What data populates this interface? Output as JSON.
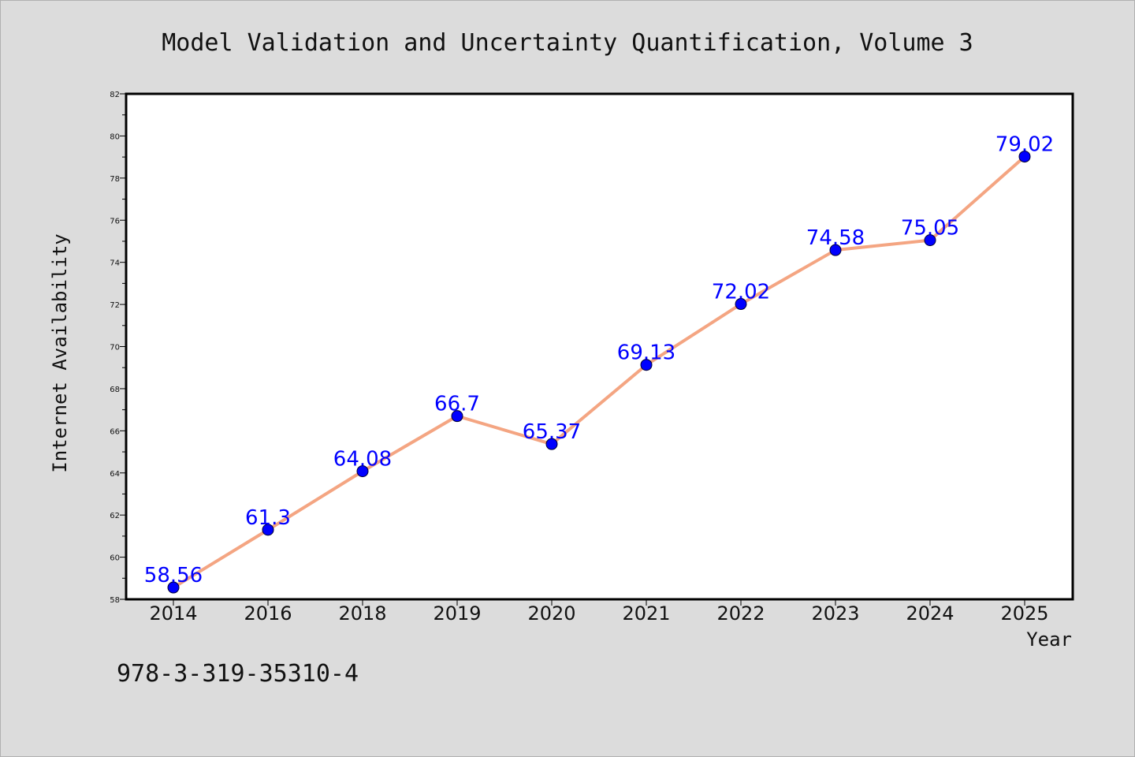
{
  "chart_data": {
    "type": "line",
    "title": "Model Validation and Uncertainty Quantification, Volume 3",
    "xlabel": "Year",
    "ylabel": "Internet Availability",
    "categories": [
      "2014",
      "2016",
      "2018",
      "2019",
      "2020",
      "2021",
      "2022",
      "2023",
      "2024",
      "2025"
    ],
    "series": [
      {
        "values": [
          58.56,
          61.3,
          64.08,
          66.7,
          65.37,
          69.13,
          72.02,
          74.58,
          75.05,
          79.02
        ],
        "labels": [
          "58.56",
          "61.3",
          "64.08",
          "66.7",
          "65.37",
          "69.13",
          "72.02",
          "74.58",
          "75.05",
          "79.02"
        ]
      }
    ],
    "ylim": [
      58,
      82
    ],
    "ytick_labels": [
      "58",
      "60",
      "62",
      "64",
      "66",
      "68",
      "70",
      "72",
      "74",
      "76",
      "78",
      "80",
      "82"
    ],
    "grid": false,
    "colors": {
      "line": "#f4a582",
      "marker": "#0000ff",
      "marker_edge": "#000033",
      "data_label": "#0000ff"
    }
  },
  "footer_text": "978-3-319-35310-4"
}
